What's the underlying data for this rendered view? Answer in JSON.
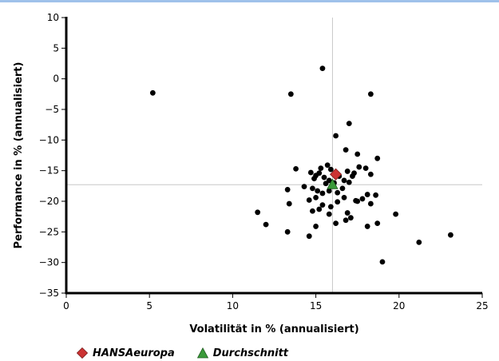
{
  "chart_data": {
    "type": "scatter",
    "title": "",
    "xlabel": "Volatilität in % (annualisiert)",
    "ylabel": "Performance in % (annualisiert)",
    "xlim": [
      0,
      25
    ],
    "ylim": [
      -35,
      10
    ],
    "x_ticks": [
      0,
      5,
      10,
      15,
      20,
      25
    ],
    "y_ticks": [
      10,
      5,
      0,
      -5,
      -10,
      -15,
      -20,
      -25,
      -30,
      -35
    ],
    "grid": false,
    "reference_lines": {
      "x": 16.0,
      "y": -17.3
    },
    "series": [
      {
        "marker": "circle",
        "color": "#000000",
        "points": [
          [
            5.2,
            -2.3
          ],
          [
            13.5,
            -2.5
          ],
          [
            15.4,
            1.7
          ],
          [
            18.3,
            -2.5
          ],
          [
            17.0,
            -7.3
          ],
          [
            16.2,
            -9.3
          ],
          [
            16.8,
            -11.6
          ],
          [
            17.5,
            -12.3
          ],
          [
            18.7,
            -13.0
          ],
          [
            13.8,
            -14.7
          ],
          [
            14.7,
            -15.3
          ],
          [
            15.0,
            -15.8
          ],
          [
            15.3,
            -14.6
          ],
          [
            15.7,
            -14.1
          ],
          [
            15.9,
            -14.8
          ],
          [
            15.2,
            -15.4
          ],
          [
            14.9,
            -16.3
          ],
          [
            15.5,
            -16.1
          ],
          [
            15.8,
            -16.6
          ],
          [
            16.4,
            -15.9
          ],
          [
            16.9,
            -15.1
          ],
          [
            17.3,
            -15.4
          ],
          [
            17.6,
            -14.4
          ],
          [
            18.0,
            -14.6
          ],
          [
            18.3,
            -15.6
          ],
          [
            16.7,
            -16.6
          ],
          [
            17.0,
            -16.9
          ],
          [
            17.2,
            -15.9
          ],
          [
            16.1,
            -17.0
          ],
          [
            14.3,
            -17.6
          ],
          [
            14.8,
            -17.9
          ],
          [
            15.1,
            -18.3
          ],
          [
            15.4,
            -18.7
          ],
          [
            15.8,
            -18.3
          ],
          [
            16.3,
            -18.6
          ],
          [
            16.6,
            -17.9
          ],
          [
            15.6,
            -17.1
          ],
          [
            13.3,
            -18.1
          ],
          [
            13.4,
            -20.4
          ],
          [
            14.6,
            -19.8
          ],
          [
            15.0,
            -19.4
          ],
          [
            15.4,
            -20.6
          ],
          [
            15.9,
            -20.9
          ],
          [
            16.3,
            -20.1
          ],
          [
            16.7,
            -19.4
          ],
          [
            17.4,
            -19.9
          ],
          [
            17.8,
            -19.6
          ],
          [
            18.1,
            -18.9
          ],
          [
            18.6,
            -19.0
          ],
          [
            18.3,
            -20.4
          ],
          [
            18.7,
            -23.6
          ],
          [
            17.1,
            -22.7
          ],
          [
            16.9,
            -21.9
          ],
          [
            16.8,
            -23.1
          ],
          [
            15.8,
            -22.1
          ],
          [
            15.2,
            -21.3
          ],
          [
            14.8,
            -21.6
          ],
          [
            16.2,
            -23.6
          ],
          [
            18.1,
            -24.1
          ],
          [
            19.8,
            -22.1
          ],
          [
            11.5,
            -21.8
          ],
          [
            12.0,
            -23.8
          ],
          [
            13.3,
            -25.0
          ],
          [
            14.6,
            -25.7
          ],
          [
            15.0,
            -24.1
          ],
          [
            21.2,
            -26.7
          ],
          [
            23.1,
            -25.5
          ],
          [
            19.0,
            -29.9
          ],
          [
            17.5,
            -20.0
          ]
        ]
      },
      {
        "name": "HANSAeuropa",
        "marker": "diamond",
        "color": "#cc3333",
        "points": [
          [
            16.2,
            -15.6
          ]
        ]
      },
      {
        "name": "Durchschnitt",
        "marker": "triangle",
        "color": "#3a9a3a",
        "points": [
          [
            16.0,
            -17.3
          ]
        ]
      }
    ]
  },
  "legend": {
    "items": [
      {
        "label": "HANSAeuropa",
        "icon": "red-diamond-icon",
        "color": "#cc3333"
      },
      {
        "label": "Durchschnitt",
        "icon": "green-triangle-icon",
        "color": "#3a9a3a"
      }
    ]
  }
}
